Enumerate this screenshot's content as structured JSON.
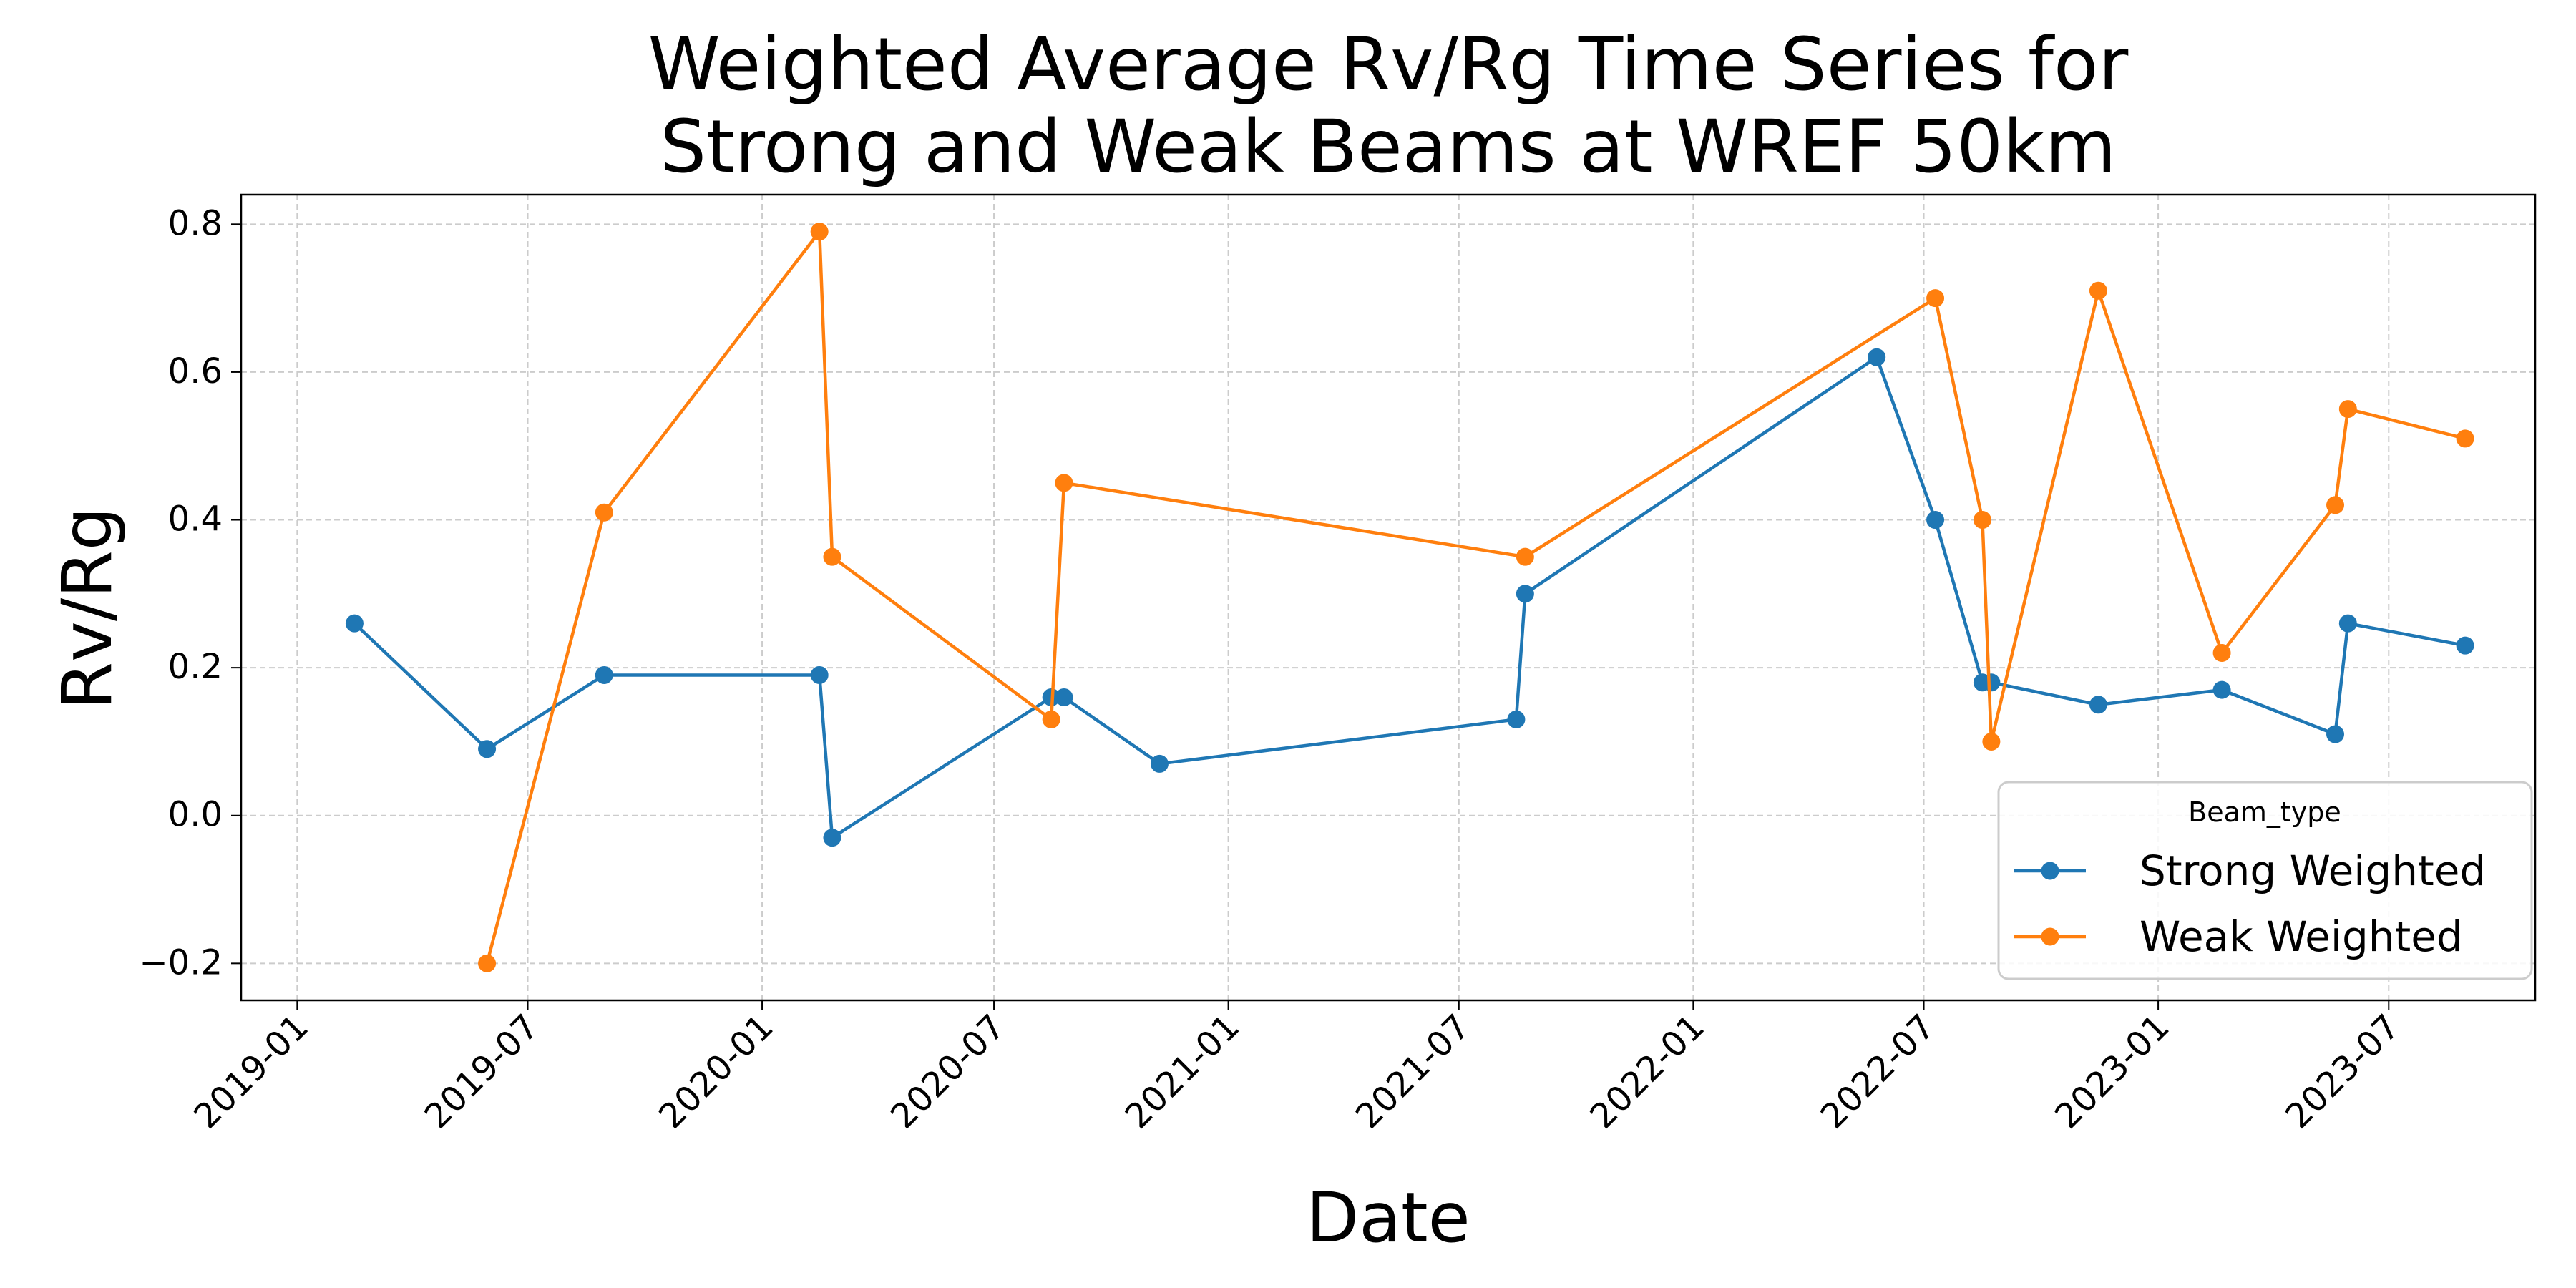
{
  "chart_data": {
    "type": "line",
    "title": [
      "Weighted Average Rv/Rg Time Series for",
      "Strong and Weak Beams at WREF 50km"
    ],
    "xlabel": "Date",
    "ylabel": "Rv/Rg",
    "x_axis_type": "date",
    "xlim": [
      "2018-11-18",
      "2023-10-24"
    ],
    "ylim": [
      -0.25,
      0.84
    ],
    "x_ticks": [
      "2019-01-01",
      "2019-07-01",
      "2020-01-01",
      "2020-07-01",
      "2021-01-01",
      "2021-07-01",
      "2022-01-01",
      "2022-07-01",
      "2023-01-01",
      "2023-07-01"
    ],
    "x_tick_labels": [
      "2019-01",
      "2019-07",
      "2020-01",
      "2020-07",
      "2021-01",
      "2021-07",
      "2022-01",
      "2022-07",
      "2023-01",
      "2023-07"
    ],
    "y_ticks": [
      -0.2,
      0.0,
      0.2,
      0.4,
      0.6,
      0.8
    ],
    "y_tick_labels": [
      "−0.2",
      "0.0",
      "0.2",
      "0.4",
      "0.6",
      "0.8"
    ],
    "grid": true,
    "legend": {
      "title": "Beam_type",
      "position": "lower-right"
    },
    "series": [
      {
        "name": "Strong Weighted",
        "color": "#1f77b4",
        "marker": "circle",
        "x": [
          "2019-02-15",
          "2019-05-30",
          "2019-08-30",
          "2020-02-15",
          "2020-02-25",
          "2020-08-15",
          "2020-08-25",
          "2020-11-08",
          "2021-08-15",
          "2021-08-22",
          "2022-05-25",
          "2022-07-10",
          "2022-08-16",
          "2022-08-23",
          "2022-11-15",
          "2023-02-20",
          "2023-05-20",
          "2023-05-30",
          "2023-08-30"
        ],
        "y": [
          0.26,
          0.09,
          0.19,
          0.19,
          -0.03,
          0.16,
          0.16,
          0.07,
          0.13,
          0.3,
          0.62,
          0.4,
          0.18,
          0.18,
          0.15,
          0.17,
          0.11,
          0.26,
          0.23
        ]
      },
      {
        "name": "Weak Weighted",
        "color": "#ff7f0e",
        "marker": "circle",
        "x": [
          "2019-05-30",
          "2019-08-30",
          "2020-02-15",
          "2020-02-25",
          "2020-08-15",
          "2020-08-25",
          "2021-08-22",
          "2022-07-10",
          "2022-08-16",
          "2022-08-23",
          "2022-11-15",
          "2023-02-20",
          "2023-05-20",
          "2023-05-30",
          "2023-08-30"
        ],
        "y": [
          -0.2,
          0.41,
          0.79,
          0.35,
          0.13,
          0.45,
          0.35,
          0.7,
          0.4,
          0.1,
          0.71,
          0.22,
          0.42,
          0.55,
          0.51
        ]
      }
    ]
  }
}
